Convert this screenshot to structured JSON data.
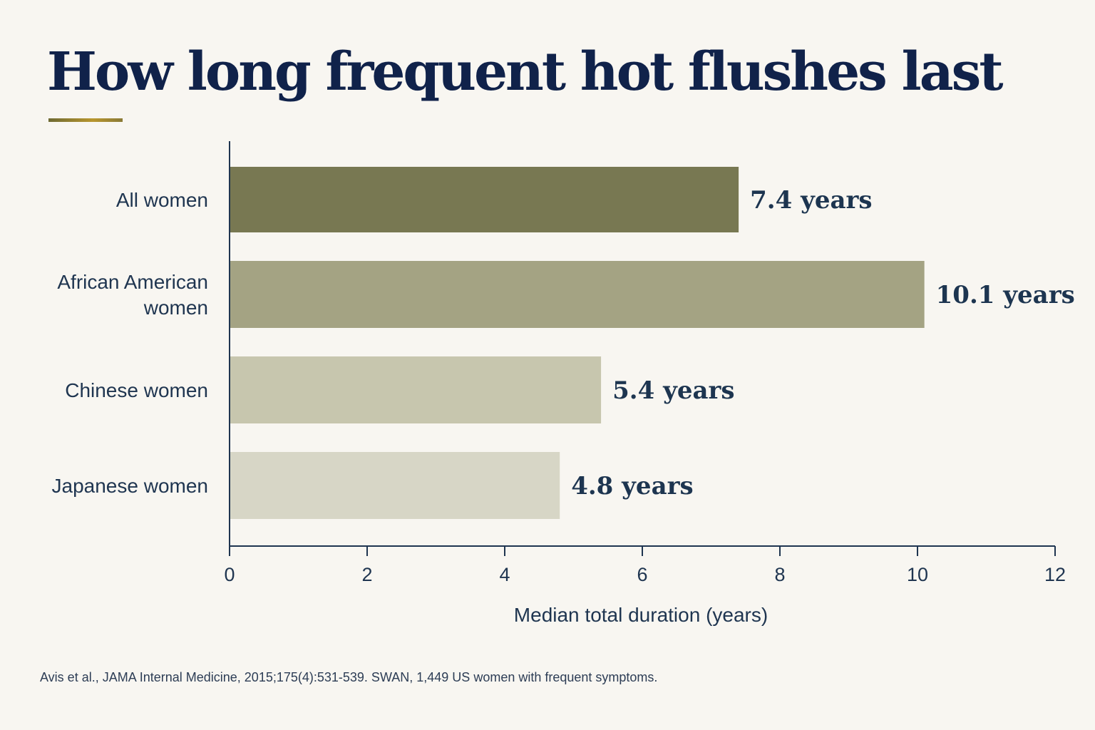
{
  "title": "How long frequent hot flushes last",
  "source": "Avis et al., JAMA Internal Medicine, 2015;175(4):531-539. SWAN, 1,449 US women with frequent symptoms.",
  "chart_data": {
    "type": "bar",
    "orientation": "horizontal",
    "categories": [
      [
        "All women"
      ],
      [
        "African American",
        "women"
      ],
      [
        "Chinese women"
      ],
      [
        "Japanese women"
      ]
    ],
    "values": [
      7.4,
      10.1,
      5.4,
      4.8
    ],
    "value_labels": [
      "7.4 years",
      "10.1 years",
      "5.4 years",
      "4.8 years"
    ],
    "bar_colors": [
      "#787852",
      "#a4a383",
      "#c7c6ae",
      "#d7d6c6"
    ],
    "xlabel": "Median total duration (years)",
    "ylabel": "",
    "xlim": [
      0,
      12
    ],
    "xticks": [
      0,
      2,
      4,
      6,
      8,
      10,
      12
    ],
    "grid": false,
    "legend": "none"
  }
}
